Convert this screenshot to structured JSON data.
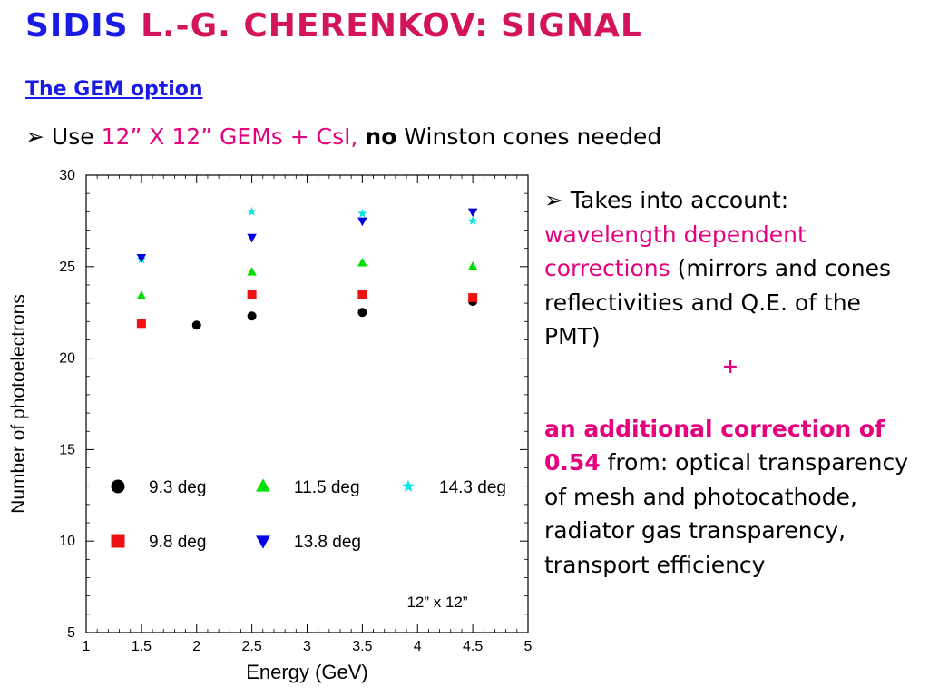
{
  "title": {
    "part1": "SIDIS ",
    "part2": "L.-G. CHERENKOV: SIGNAL"
  },
  "subheading": "The GEM option",
  "bullet1": {
    "marker": "➢",
    "use": "Use ",
    "gems": "12” X 12” GEMs + CsI, ",
    "no": "no",
    "rest": " Winston cones needed"
  },
  "right_text": {
    "marker": "➢",
    "intro": " Takes into account: ",
    "wavelength": "wavelength dependent corrections",
    "paren": " (mirrors and cones reflectivities and Q.E. of the PMT)",
    "plus": "+",
    "additional": "an additional correction of 0.54",
    "from": " from: optical transparency of mesh and photocathode, radiator gas transparency, transport efficiency"
  },
  "chart_data": {
    "type": "scatter",
    "xlabel": "Energy (GeV)",
    "ylabel": "Number of photoelectrons",
    "xlim": [
      1,
      5
    ],
    "ylim": [
      5,
      30
    ],
    "xticks": [
      1,
      1.5,
      2,
      2.5,
      3,
      3.5,
      4,
      4.5,
      5
    ],
    "xtick_labels": [
      "1",
      "1.5",
      "2",
      "2.5",
      "3",
      "3.5",
      "4",
      "4.5",
      "5"
    ],
    "yticks": [
      5,
      10,
      15,
      20,
      25,
      30
    ],
    "ytick_labels": [
      "5",
      "10",
      "15",
      "20",
      "25",
      "30"
    ],
    "annotation": "12” x 12”",
    "series": [
      {
        "name": "9.3 deg",
        "marker": "circle",
        "color": "#000000",
        "x": [
          2,
          2.5,
          3.5,
          4.5
        ],
        "y": [
          21.8,
          22.3,
          22.5,
          23.1
        ]
      },
      {
        "name": "11.5 deg",
        "marker": "triangle-up",
        "color": "#00e000",
        "x": [
          1.5,
          2.5,
          3.5,
          4.5
        ],
        "y": [
          23.4,
          24.7,
          25.2,
          25.0
        ]
      },
      {
        "name": "14.3 deg",
        "marker": "star",
        "color": "#00e5e5",
        "x": [
          1.5,
          2.5,
          3.5,
          4.5
        ],
        "y": [
          25.4,
          28.0,
          27.9,
          27.5
        ]
      },
      {
        "name": "9.8 deg",
        "marker": "square",
        "color": "#ee1111",
        "x": [
          1.5,
          2.5,
          3.5,
          4.5
        ],
        "y": [
          21.9,
          23.5,
          23.5,
          23.3
        ]
      },
      {
        "name": "13.8 deg",
        "marker": "triangle-down",
        "color": "#0000e6",
        "x": [
          1.5,
          2.5,
          3.5,
          4.5
        ],
        "y": [
          25.5,
          26.6,
          27.5,
          28.0
        ]
      }
    ]
  }
}
